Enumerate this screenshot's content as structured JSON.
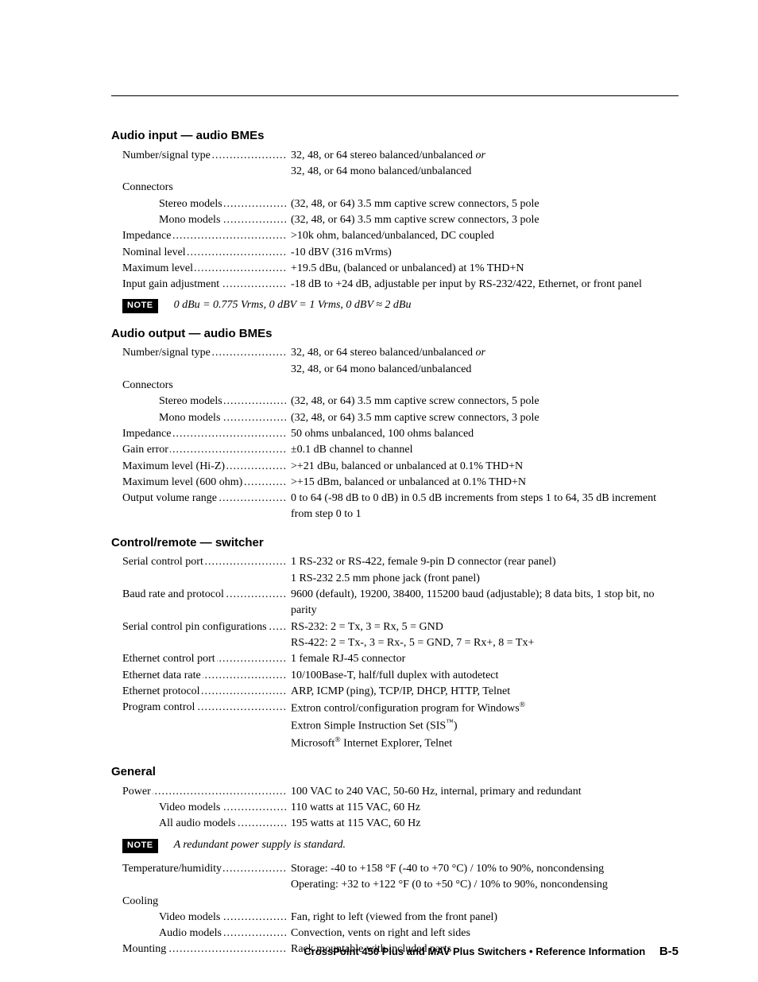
{
  "sections": {
    "audio_input": {
      "title": "Audio input — audio BMEs",
      "rows": [
        {
          "label": "Number/signal type",
          "value": "32, 48, or 64 stereo balanced/unbalanced <i>or</i><br>32, 48, or 64 mono balanced/unbalanced"
        },
        {
          "label": "Connectors",
          "value": "",
          "noleader": true
        },
        {
          "label": "Stereo models",
          "indent": true,
          "value": "(32, 48, or 64) 3.5 mm captive screw connectors, 5 pole"
        },
        {
          "label": "Mono models",
          "indent": true,
          "value": "(32, 48, or 64) 3.5 mm captive screw connectors, 3 pole"
        },
        {
          "label": "Impedance",
          "value": ">10k ohm, balanced/unbalanced, DC coupled"
        },
        {
          "label": "Nominal level",
          "value": "-10 dBV (316 mVrms)"
        },
        {
          "label": "Maximum level",
          "value": "+19.5 dBu, (balanced or unbalanced) at 1% THD+N"
        },
        {
          "label": "Input gain adjustment",
          "value": "-18 dB to +24 dB, adjustable per input by RS-232/422, Ethernet, or front panel"
        }
      ],
      "note": "0 dBu = 0.775 Vrms, 0 dBV = 1 Vrms, 0 dBV ≈ 2 dBu"
    },
    "audio_output": {
      "title": "Audio output — audio BMEs",
      "rows": [
        {
          "label": "Number/signal type",
          "value": "32, 48, or 64 stereo balanced/unbalanced <i>or</i><br>32, 48, or 64 mono balanced/unbalanced"
        },
        {
          "label": "Connectors",
          "value": "",
          "noleader": true
        },
        {
          "label": "Stereo models",
          "indent": true,
          "value": "(32, 48, or 64) 3.5 mm captive screw connectors, 5 pole"
        },
        {
          "label": "Mono models",
          "indent": true,
          "value": "(32, 48, or 64) 3.5 mm captive screw connectors, 3 pole"
        },
        {
          "label": "Impedance",
          "value": "50 ohms unbalanced, 100 ohms balanced"
        },
        {
          "label": "Gain error",
          "value": "±0.1 dB channel to channel"
        },
        {
          "label": "Maximum level (Hi-Z)",
          "value": ">+21 dBu, balanced or unbalanced at 0.1% THD+N"
        },
        {
          "label": "Maximum level (600 ohm)",
          "value": ">+15 dBm, balanced or unbalanced at 0.1% THD+N"
        },
        {
          "label": "Output volume range",
          "value": "0 to 64 (-98 dB to 0 dB) in 0.5 dB increments from steps 1 to 64, 35 dB increment from step 0 to 1"
        }
      ]
    },
    "control": {
      "title": "Control/remote — switcher",
      "rows": [
        {
          "label": "Serial control port",
          "value": "1 RS-232 or RS-422, female 9-pin D connector (rear panel)<br>1 RS-232 2.5 mm phone jack (front panel)"
        },
        {
          "label": "Baud rate and protocol",
          "value": "9600 (default), 19200, 38400, 115200 baud (adjustable); 8 data bits, 1 stop bit, no parity"
        },
        {
          "label": "Serial control pin configurations",
          "shortleader": true,
          "value": "RS-232: 2 = Tx, 3 = Rx, 5 = GND<br>RS-422: 2 = Tx-, 3 = Rx-, 5 = GND, 7 = Rx+, 8 = Tx+"
        },
        {
          "label": "Ethernet control port",
          "value": "1 female RJ-45 connector"
        },
        {
          "label": "Ethernet data rate",
          "value": "10/100Base-T, half/full duplex with autodetect"
        },
        {
          "label": "Ethernet protocol",
          "value": "ARP, ICMP (ping), TCP/IP, DHCP, HTTP, Telnet"
        },
        {
          "label": "Program control",
          "value": "Extron control/configuration program for Windows<sup>®</sup><br>Extron Simple Instruction Set (SIS<sup>™</sup>)<br>Microsoft<sup>®</sup> Internet Explorer, Telnet"
        }
      ]
    },
    "general": {
      "title": "General",
      "rows_a": [
        {
          "label": "Power",
          "value": "100 VAC to 240 VAC, 50-60 Hz, internal, primary and redundant"
        },
        {
          "label": "Video models",
          "indent": true,
          "value": "110 watts at 115 VAC, 60 Hz"
        },
        {
          "label": "All audio models",
          "indent": true,
          "value": "195 watts at 115 VAC, 60 Hz"
        }
      ],
      "note": "A redundant power supply is standard.",
      "rows_b": [
        {
          "label": "Temperature/humidity",
          "value": "Storage: -40 to +158 °F (-40 to +70 °C) / 10% to 90%, noncondensing<br>Operating: +32 to +122 °F (0 to +50 °C) / 10% to 90%, noncondensing"
        },
        {
          "label": "Cooling",
          "value": "",
          "noleader": true
        },
        {
          "label": "Video models",
          "indent": true,
          "value": "Fan, right to left (viewed from the front panel)"
        },
        {
          "label": "Audio models",
          "indent": true,
          "value": "Convection, vents on right and left sides"
        },
        {
          "label": "Mounting",
          "value": "Rack mountable with included parts"
        }
      ]
    }
  },
  "note_badge": "NOTE",
  "footer": {
    "text": "CrossPoint 450 Plus and MAV Plus Switchers • Reference Information",
    "page": "B-5"
  }
}
